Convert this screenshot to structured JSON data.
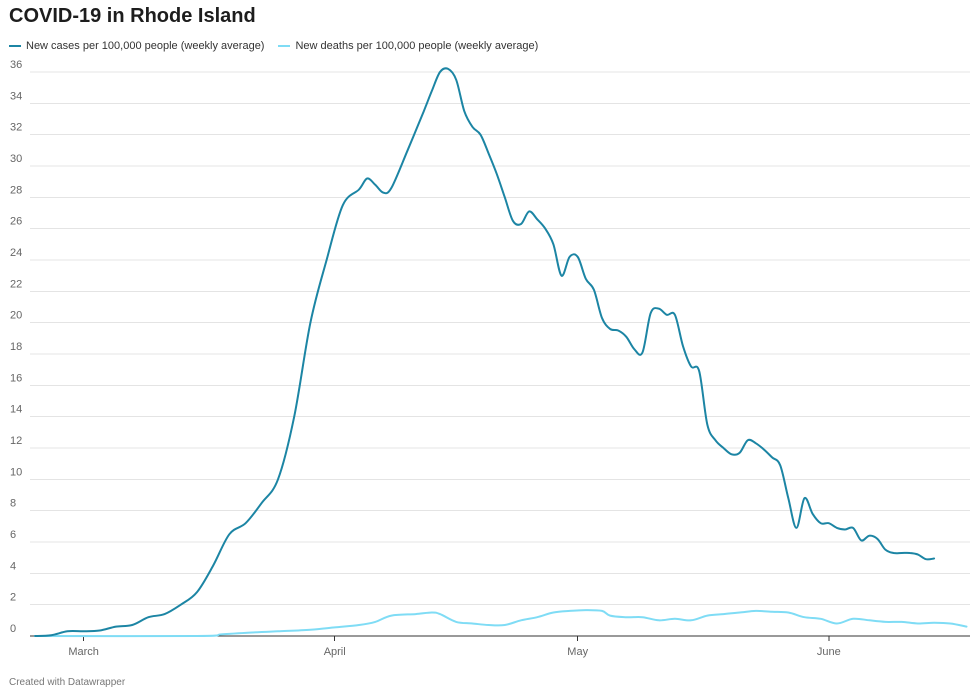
{
  "chart_data": {
    "type": "line",
    "title": "COVID-19 in Rhode Island",
    "xlabel": "",
    "ylabel": "",
    "ylim": [
      0,
      36
    ],
    "y_ticks": [
      0,
      2,
      4,
      6,
      8,
      10,
      12,
      14,
      16,
      18,
      20,
      22,
      24,
      26,
      28,
      30,
      32,
      34,
      36
    ],
    "x_range": [
      0,
      117
    ],
    "x_ticks": [
      {
        "day": 6,
        "label": "March"
      },
      {
        "day": 37,
        "label": "April"
      },
      {
        "day": 67,
        "label": "May"
      },
      {
        "day": 98,
        "label": "June"
      }
    ],
    "series": [
      {
        "name": "New cases per 100,000 people (weekly average)",
        "color": "#1c85a4",
        "points": [
          [
            0,
            0
          ],
          [
            2,
            0.05
          ],
          [
            4,
            0.3
          ],
          [
            6,
            0.3
          ],
          [
            8,
            0.35
          ],
          [
            10,
            0.6
          ],
          [
            12,
            0.7
          ],
          [
            14,
            1.2
          ],
          [
            16,
            1.4
          ],
          [
            18,
            2.0
          ],
          [
            20,
            2.8
          ],
          [
            22,
            4.5
          ],
          [
            24,
            6.5
          ],
          [
            26,
            7.2
          ],
          [
            28,
            8.5
          ],
          [
            30,
            10.0
          ],
          [
            32,
            14.0
          ],
          [
            34,
            20.0
          ],
          [
            36,
            24.0
          ],
          [
            38,
            27.5
          ],
          [
            40,
            28.5
          ],
          [
            41,
            29.2
          ],
          [
            42,
            28.8
          ],
          [
            43,
            28.3
          ],
          [
            44,
            28.6
          ],
          [
            46,
            31.0
          ],
          [
            48,
            33.5
          ],
          [
            49,
            34.8
          ],
          [
            50,
            36.0
          ],
          [
            51,
            36.2
          ],
          [
            52,
            35.5
          ],
          [
            53,
            33.5
          ],
          [
            54,
            32.5
          ],
          [
            55,
            32.0
          ],
          [
            56,
            30.8
          ],
          [
            57,
            29.5
          ],
          [
            58,
            28.0
          ],
          [
            59,
            26.5
          ],
          [
            60,
            26.3
          ],
          [
            61,
            27.1
          ],
          [
            62,
            26.6
          ],
          [
            63,
            26.0
          ],
          [
            64,
            25.0
          ],
          [
            65,
            23.0
          ],
          [
            66,
            24.2
          ],
          [
            67,
            24.2
          ],
          [
            68,
            22.8
          ],
          [
            69,
            22.1
          ],
          [
            70,
            20.3
          ],
          [
            71,
            19.6
          ],
          [
            72,
            19.5
          ],
          [
            73,
            19.1
          ],
          [
            74,
            18.3
          ],
          [
            75,
            18.1
          ],
          [
            76,
            20.6
          ],
          [
            77,
            20.9
          ],
          [
            78,
            20.5
          ],
          [
            79,
            20.5
          ],
          [
            80,
            18.5
          ],
          [
            81,
            17.2
          ],
          [
            82,
            16.9
          ],
          [
            83,
            13.5
          ],
          [
            84,
            12.5
          ],
          [
            85,
            12.0
          ],
          [
            86,
            11.6
          ],
          [
            87,
            11.7
          ],
          [
            88,
            12.5
          ],
          [
            89,
            12.3
          ],
          [
            90,
            11.9
          ],
          [
            91,
            11.4
          ],
          [
            92,
            10.9
          ],
          [
            93,
            8.8
          ],
          [
            94,
            6.9
          ],
          [
            95,
            8.8
          ],
          [
            96,
            7.8
          ],
          [
            97,
            7.2
          ],
          [
            98,
            7.2
          ],
          [
            99,
            6.9
          ],
          [
            100,
            6.8
          ],
          [
            101,
            6.9
          ],
          [
            102,
            6.1
          ],
          [
            103,
            6.4
          ],
          [
            104,
            6.2
          ],
          [
            105,
            5.5
          ],
          [
            106,
            5.3
          ],
          [
            107,
            5.3
          ],
          [
            108,
            5.3
          ],
          [
            109,
            5.2
          ],
          [
            110,
            4.9
          ],
          [
            111,
            4.95
          ]
        ]
      },
      {
        "name": "New deaths per 100,000 people (weekly average)",
        "color": "#7fdcf5",
        "points": [
          [
            0,
            0
          ],
          [
            20,
            0
          ],
          [
            23,
            0.1
          ],
          [
            26,
            0.2
          ],
          [
            30,
            0.3
          ],
          [
            34,
            0.4
          ],
          [
            37,
            0.55
          ],
          [
            40,
            0.7
          ],
          [
            42,
            0.9
          ],
          [
            44,
            1.3
          ],
          [
            47,
            1.4
          ],
          [
            49,
            1.5
          ],
          [
            50,
            1.4
          ],
          [
            52,
            0.9
          ],
          [
            54,
            0.8
          ],
          [
            56,
            0.7
          ],
          [
            58,
            0.7
          ],
          [
            60,
            1.0
          ],
          [
            62,
            1.2
          ],
          [
            64,
            1.5
          ],
          [
            66,
            1.6
          ],
          [
            68,
            1.65
          ],
          [
            70,
            1.6
          ],
          [
            71,
            1.3
          ],
          [
            73,
            1.2
          ],
          [
            75,
            1.2
          ],
          [
            77,
            1.0
          ],
          [
            79,
            1.1
          ],
          [
            81,
            1.0
          ],
          [
            83,
            1.3
          ],
          [
            85,
            1.4
          ],
          [
            87,
            1.5
          ],
          [
            89,
            1.6
          ],
          [
            91,
            1.55
          ],
          [
            93,
            1.5
          ],
          [
            95,
            1.2
          ],
          [
            97,
            1.1
          ],
          [
            99,
            0.8
          ],
          [
            101,
            1.1
          ],
          [
            103,
            1.0
          ],
          [
            105,
            0.9
          ],
          [
            107,
            0.9
          ],
          [
            109,
            0.8
          ],
          [
            111,
            0.85
          ],
          [
            113,
            0.8
          ],
          [
            115,
            0.6
          ]
        ]
      }
    ]
  },
  "footer": "Created with Datawrapper"
}
